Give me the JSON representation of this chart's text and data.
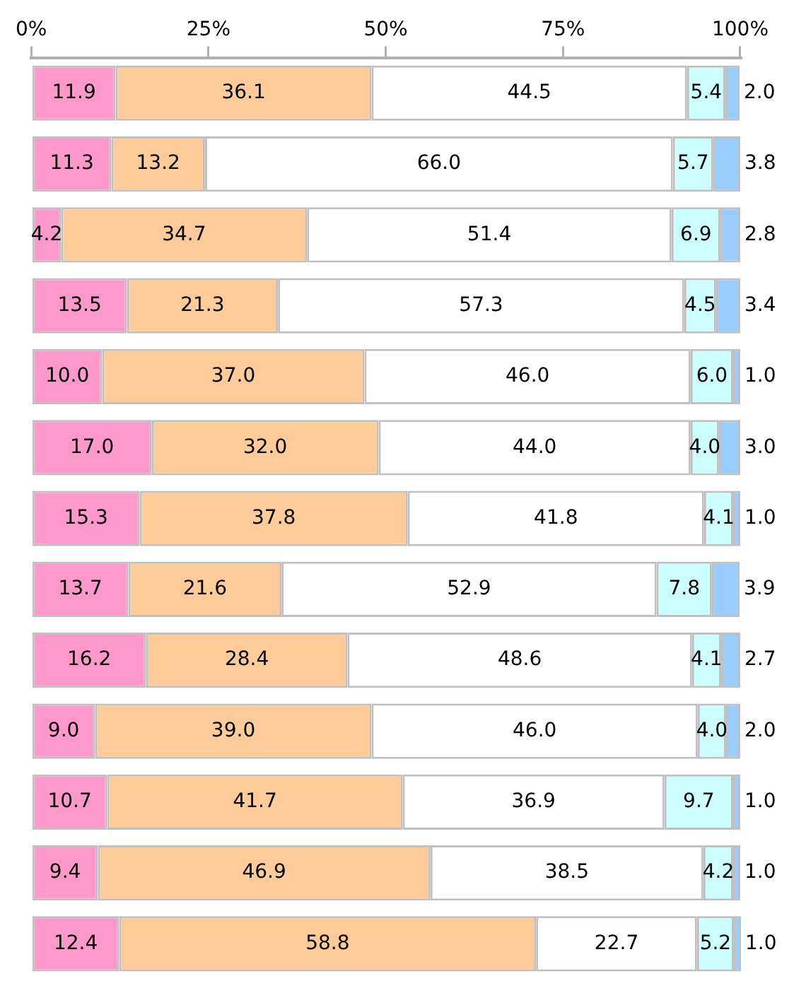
{
  "chart_data": {
    "type": "bar",
    "orientation": "horizontal",
    "stacked": true,
    "categories": [
      null,
      null,
      null,
      null,
      null,
      null,
      null,
      null,
      null,
      null,
      null,
      null,
      null
    ],
    "xlim": [
      0,
      100.1
    ],
    "xticks": [
      {
        "value": 0,
        "label": "0%"
      },
      {
        "value": 25,
        "label": "25%"
      },
      {
        "value": 50,
        "label": "50%"
      },
      {
        "value": 75,
        "label": "75%"
      },
      {
        "value": 100,
        "label": "100%"
      }
    ],
    "series": [
      {
        "color": "#ff99cc",
        "values": [
          11.9,
          11.3,
          4.2,
          13.5,
          10.0,
          17.0,
          15.3,
          13.7,
          16.2,
          9.0,
          10.7,
          9.4,
          12.4
        ],
        "value_labels": [
          "11.9",
          "11.3",
          "4.2",
          "13.5",
          "10.0",
          "17.0",
          "15.3",
          "13.7",
          "16.2",
          "9.0",
          "10.7",
          "9.4",
          "12.4"
        ]
      },
      {
        "color": "#ffcc99",
        "values": [
          36.1,
          13.2,
          34.7,
          21.3,
          37.0,
          32.0,
          37.8,
          21.6,
          28.4,
          39.0,
          41.7,
          46.9,
          58.8
        ],
        "value_labels": [
          "36.1",
          "13.2",
          "34.7",
          "21.3",
          "37.0",
          "32.0",
          "37.8",
          "21.6",
          "28.4",
          "39.0",
          "41.7",
          "46.9",
          "58.8"
        ]
      },
      {
        "color": "#ffffff",
        "values": [
          44.5,
          66.0,
          51.4,
          57.3,
          46.0,
          44.0,
          41.8,
          52.9,
          48.6,
          46.0,
          36.9,
          38.5,
          22.7
        ],
        "value_labels": [
          "44.5",
          "66.0",
          "51.4",
          "57.3",
          "46.0",
          "44.0",
          "41.8",
          "52.9",
          "48.6",
          "46.0",
          "36.9",
          "38.5",
          "22.7"
        ]
      },
      {
        "color": "#ccffff",
        "values": [
          5.4,
          5.7,
          6.9,
          4.5,
          6.0,
          4.0,
          4.1,
          7.8,
          4.1,
          4.0,
          9.7,
          4.2,
          5.2
        ],
        "value_labels": [
          "5.4",
          "5.7",
          "6.9",
          "4.5",
          "6.0",
          "4.0",
          "4.1",
          "7.8",
          "4.1",
          "4.0",
          "9.7",
          "4.2",
          "5.2"
        ]
      },
      {
        "color": "#99ccff",
        "values": [
          2.0,
          3.8,
          2.8,
          3.4,
          1.0,
          3.0,
          1.0,
          3.9,
          2.7,
          2.0,
          1.0,
          1.0,
          1.0
        ],
        "value_labels": [
          "2.0",
          "3.8",
          "2.8",
          "3.4",
          "1.0",
          "3.0",
          "1.0",
          "3.9",
          "2.7",
          "2.0",
          "1.0",
          "1.0",
          "1.0"
        ]
      }
    ]
  }
}
